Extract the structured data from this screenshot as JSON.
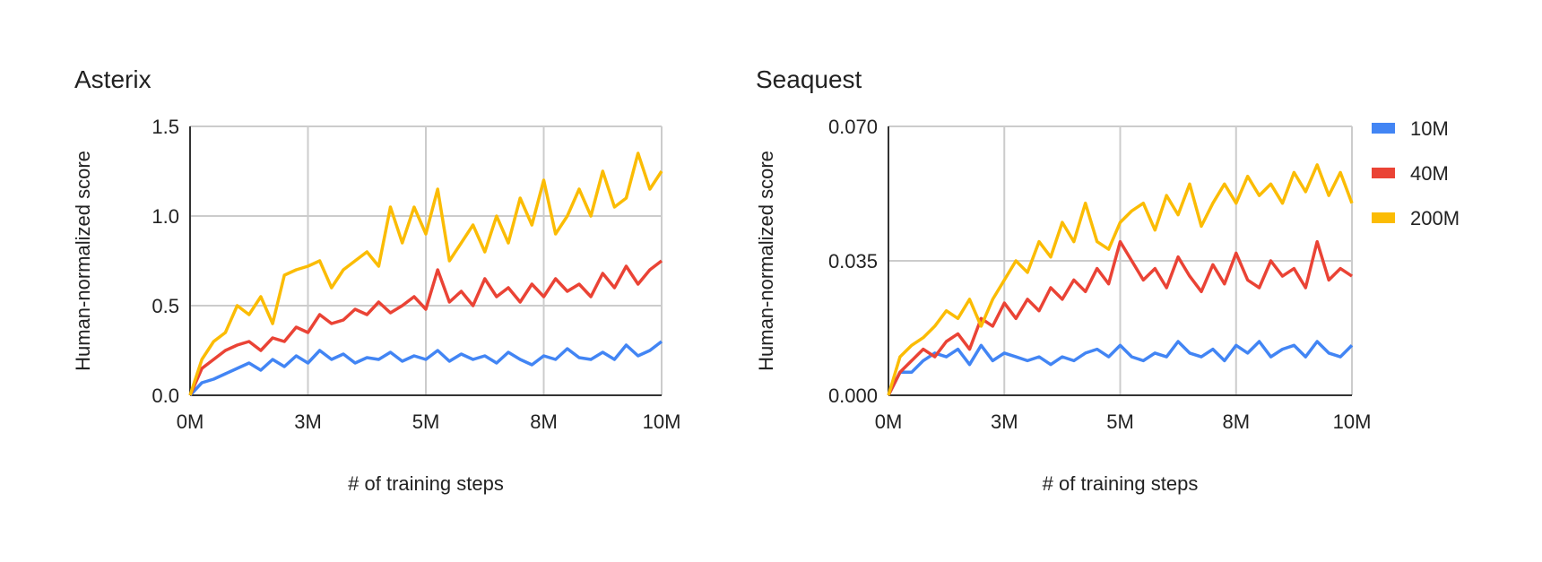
{
  "legend": [
    {
      "name": "10M",
      "color": "#4285f4"
    },
    {
      "name": "40M",
      "color": "#ea4335"
    },
    {
      "name": "200M",
      "color": "#fbbc04"
    }
  ],
  "chart_data": [
    {
      "type": "line",
      "title": "Asterix",
      "xlabel": "# of training steps",
      "ylabel": "Human-normalized score",
      "xlim": [
        0,
        10
      ],
      "ylim": [
        0,
        1.5
      ],
      "xticks": [
        0,
        2.5,
        5,
        7.5,
        10
      ],
      "xtick_labels": [
        "0M",
        "3M",
        "5M",
        "8M",
        "10M"
      ],
      "yticks": [
        0,
        0.5,
        1.0,
        1.5
      ],
      "ytick_labels": [
        "0.0",
        "0.5",
        "1.0",
        "1.5"
      ],
      "grid": true,
      "x_step": 0.25,
      "series": [
        {
          "name": "10M",
          "values": [
            0,
            0.07,
            0.09,
            0.12,
            0.15,
            0.18,
            0.14,
            0.2,
            0.16,
            0.22,
            0.18,
            0.25,
            0.2,
            0.23,
            0.18,
            0.21,
            0.2,
            0.24,
            0.19,
            0.22,
            0.2,
            0.25,
            0.19,
            0.23,
            0.2,
            0.22,
            0.18,
            0.24,
            0.2,
            0.17,
            0.22,
            0.2,
            0.26,
            0.21,
            0.2,
            0.24,
            0.2,
            0.28,
            0.22,
            0.25,
            0.3
          ]
        },
        {
          "name": "40M",
          "values": [
            0,
            0.15,
            0.2,
            0.25,
            0.28,
            0.3,
            0.25,
            0.32,
            0.3,
            0.38,
            0.35,
            0.45,
            0.4,
            0.42,
            0.48,
            0.45,
            0.52,
            0.46,
            0.5,
            0.55,
            0.48,
            0.7,
            0.52,
            0.58,
            0.5,
            0.65,
            0.55,
            0.6,
            0.52,
            0.62,
            0.55,
            0.65,
            0.58,
            0.62,
            0.55,
            0.68,
            0.6,
            0.72,
            0.62,
            0.7,
            0.75
          ]
        },
        {
          "name": "200M",
          "values": [
            0,
            0.2,
            0.3,
            0.35,
            0.5,
            0.45,
            0.55,
            0.4,
            0.67,
            0.7,
            0.72,
            0.75,
            0.6,
            0.7,
            0.75,
            0.8,
            0.72,
            1.05,
            0.85,
            1.05,
            0.9,
            1.15,
            0.75,
            0.85,
            0.95,
            0.8,
            1.0,
            0.85,
            1.1,
            0.95,
            1.2,
            0.9,
            1.0,
            1.15,
            1.0,
            1.25,
            1.05,
            1.1,
            1.35,
            1.15,
            1.25
          ]
        }
      ]
    },
    {
      "type": "line",
      "title": "Seaquest",
      "xlabel": "# of training steps",
      "ylabel": "Human-normalized score",
      "xlim": [
        0,
        10
      ],
      "ylim": [
        0,
        0.07
      ],
      "xticks": [
        0,
        2.5,
        5,
        7.5,
        10
      ],
      "xtick_labels": [
        "0M",
        "3M",
        "5M",
        "8M",
        "10M"
      ],
      "yticks": [
        0,
        0.035,
        0.07
      ],
      "ytick_labels": [
        "0.000",
        "0.035",
        "0.070"
      ],
      "grid": true,
      "x_step": 0.25,
      "series": [
        {
          "name": "10M",
          "values": [
            0,
            0.006,
            0.006,
            0.009,
            0.011,
            0.01,
            0.012,
            0.008,
            0.013,
            0.009,
            0.011,
            0.01,
            0.009,
            0.01,
            0.008,
            0.01,
            0.009,
            0.011,
            0.012,
            0.01,
            0.013,
            0.01,
            0.009,
            0.011,
            0.01,
            0.014,
            0.011,
            0.01,
            0.012,
            0.009,
            0.013,
            0.011,
            0.014,
            0.01,
            0.012,
            0.013,
            0.01,
            0.014,
            0.011,
            0.01,
            0.013
          ]
        },
        {
          "name": "40M",
          "values": [
            0,
            0.006,
            0.009,
            0.012,
            0.01,
            0.014,
            0.016,
            0.012,
            0.02,
            0.018,
            0.024,
            0.02,
            0.025,
            0.022,
            0.028,
            0.025,
            0.03,
            0.027,
            0.033,
            0.029,
            0.04,
            0.035,
            0.03,
            0.033,
            0.028,
            0.036,
            0.031,
            0.027,
            0.034,
            0.029,
            0.037,
            0.03,
            0.028,
            0.035,
            0.031,
            0.033,
            0.028,
            0.04,
            0.03,
            0.033,
            0.031
          ]
        },
        {
          "name": "200M",
          "values": [
            0,
            0.01,
            0.013,
            0.015,
            0.018,
            0.022,
            0.02,
            0.025,
            0.018,
            0.025,
            0.03,
            0.035,
            0.032,
            0.04,
            0.036,
            0.045,
            0.04,
            0.05,
            0.04,
            0.038,
            0.045,
            0.048,
            0.05,
            0.043,
            0.052,
            0.047,
            0.055,
            0.044,
            0.05,
            0.055,
            0.05,
            0.057,
            0.052,
            0.055,
            0.05,
            0.058,
            0.053,
            0.06,
            0.052,
            0.058,
            0.05
          ]
        }
      ]
    }
  ]
}
